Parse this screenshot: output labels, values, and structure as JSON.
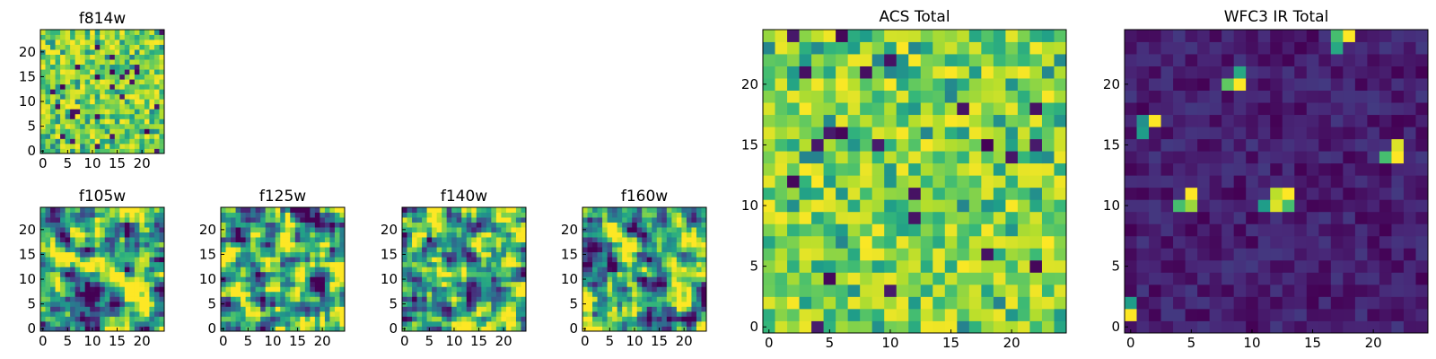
{
  "chart_data": {
    "type": "heatmap",
    "colormap": "viridis",
    "panels": [
      {
        "id": "f814w",
        "title": "f814w",
        "grid": [
          25,
          25
        ],
        "xlim": [
          0,
          24
        ],
        "ylim": [
          0,
          24
        ],
        "xticks": [
          "0",
          "5",
          "10",
          "15",
          "20"
        ],
        "yticks": [
          "0",
          "5",
          "10",
          "15",
          "20"
        ],
        "seed": 11,
        "style": "noise",
        "description": "mostly green-yellow noise with a few dark pixels"
      },
      {
        "id": "f105w",
        "title": "f105w",
        "grid": [
          25,
          25
        ],
        "xlim": [
          0,
          24
        ],
        "ylim": [
          0,
          24
        ],
        "xticks": [
          "0",
          "5",
          "10",
          "15",
          "20"
        ],
        "yticks": [
          "0",
          "5",
          "10",
          "15",
          "20"
        ],
        "seed": 21,
        "style": "smooth"
      },
      {
        "id": "f125w",
        "title": "f125w",
        "grid": [
          25,
          25
        ],
        "xlim": [
          0,
          24
        ],
        "ylim": [
          0,
          24
        ],
        "xticks": [
          "0",
          "5",
          "10",
          "15",
          "20"
        ],
        "yticks": [
          "0",
          "5",
          "10",
          "15",
          "20"
        ],
        "seed": 31,
        "style": "smooth"
      },
      {
        "id": "f140w",
        "title": "f140w",
        "grid": [
          25,
          25
        ],
        "xlim": [
          0,
          24
        ],
        "ylim": [
          0,
          24
        ],
        "xticks": [
          "0",
          "5",
          "10",
          "15",
          "20"
        ],
        "yticks": [
          "0",
          "5",
          "10",
          "15",
          "20"
        ],
        "seed": 41,
        "style": "smooth"
      },
      {
        "id": "f160w",
        "title": "f160w",
        "grid": [
          25,
          25
        ],
        "xlim": [
          0,
          24
        ],
        "ylim": [
          0,
          24
        ],
        "xticks": [
          "0",
          "5",
          "10",
          "15",
          "20"
        ],
        "yticks": [
          "0",
          "5",
          "10",
          "15",
          "20"
        ],
        "seed": 51,
        "style": "smooth"
      },
      {
        "id": "acs_total",
        "title": "ACS Total",
        "grid": [
          25,
          25
        ],
        "xlim": [
          0,
          24
        ],
        "ylim": [
          0,
          24
        ],
        "xticks": [
          "0",
          "5",
          "10",
          "15",
          "20"
        ],
        "yticks": [
          "0",
          "5",
          "10",
          "15",
          "20"
        ],
        "seed": 61,
        "style": "noise"
      },
      {
        "id": "wfc3_ir_total",
        "title": "WFC3 IR Total",
        "grid": [
          25,
          25
        ],
        "xlim": [
          0,
          24
        ],
        "ylim": [
          0,
          24
        ],
        "xticks": [
          "0",
          "5",
          "10",
          "15",
          "20"
        ],
        "yticks": [
          "0",
          "5",
          "10",
          "15",
          "20"
        ],
        "seed": 71,
        "style": "sources",
        "hot_pixels": [
          [
            18,
            24,
            1.0
          ],
          [
            17,
            24,
            0.7
          ],
          [
            17,
            23,
            0.6
          ],
          [
            8,
            20,
            0.75
          ],
          [
            9,
            20,
            1.0
          ],
          [
            9,
            21,
            0.6
          ],
          [
            1,
            16,
            0.55
          ],
          [
            2,
            17,
            1.0
          ],
          [
            1,
            17,
            0.5
          ],
          [
            21,
            14,
            0.7
          ],
          [
            22,
            14,
            1.0
          ],
          [
            22,
            15,
            0.95
          ],
          [
            12,
            11,
            0.9
          ],
          [
            13,
            11,
            1.0
          ],
          [
            12,
            10,
            0.95
          ],
          [
            13,
            10,
            0.7
          ],
          [
            11,
            10,
            0.55
          ],
          [
            4,
            10,
            0.7
          ],
          [
            5,
            11,
            1.0
          ],
          [
            5,
            10,
            0.85
          ],
          [
            0,
            1,
            1.0
          ],
          [
            0,
            2,
            0.55
          ]
        ]
      }
    ]
  }
}
